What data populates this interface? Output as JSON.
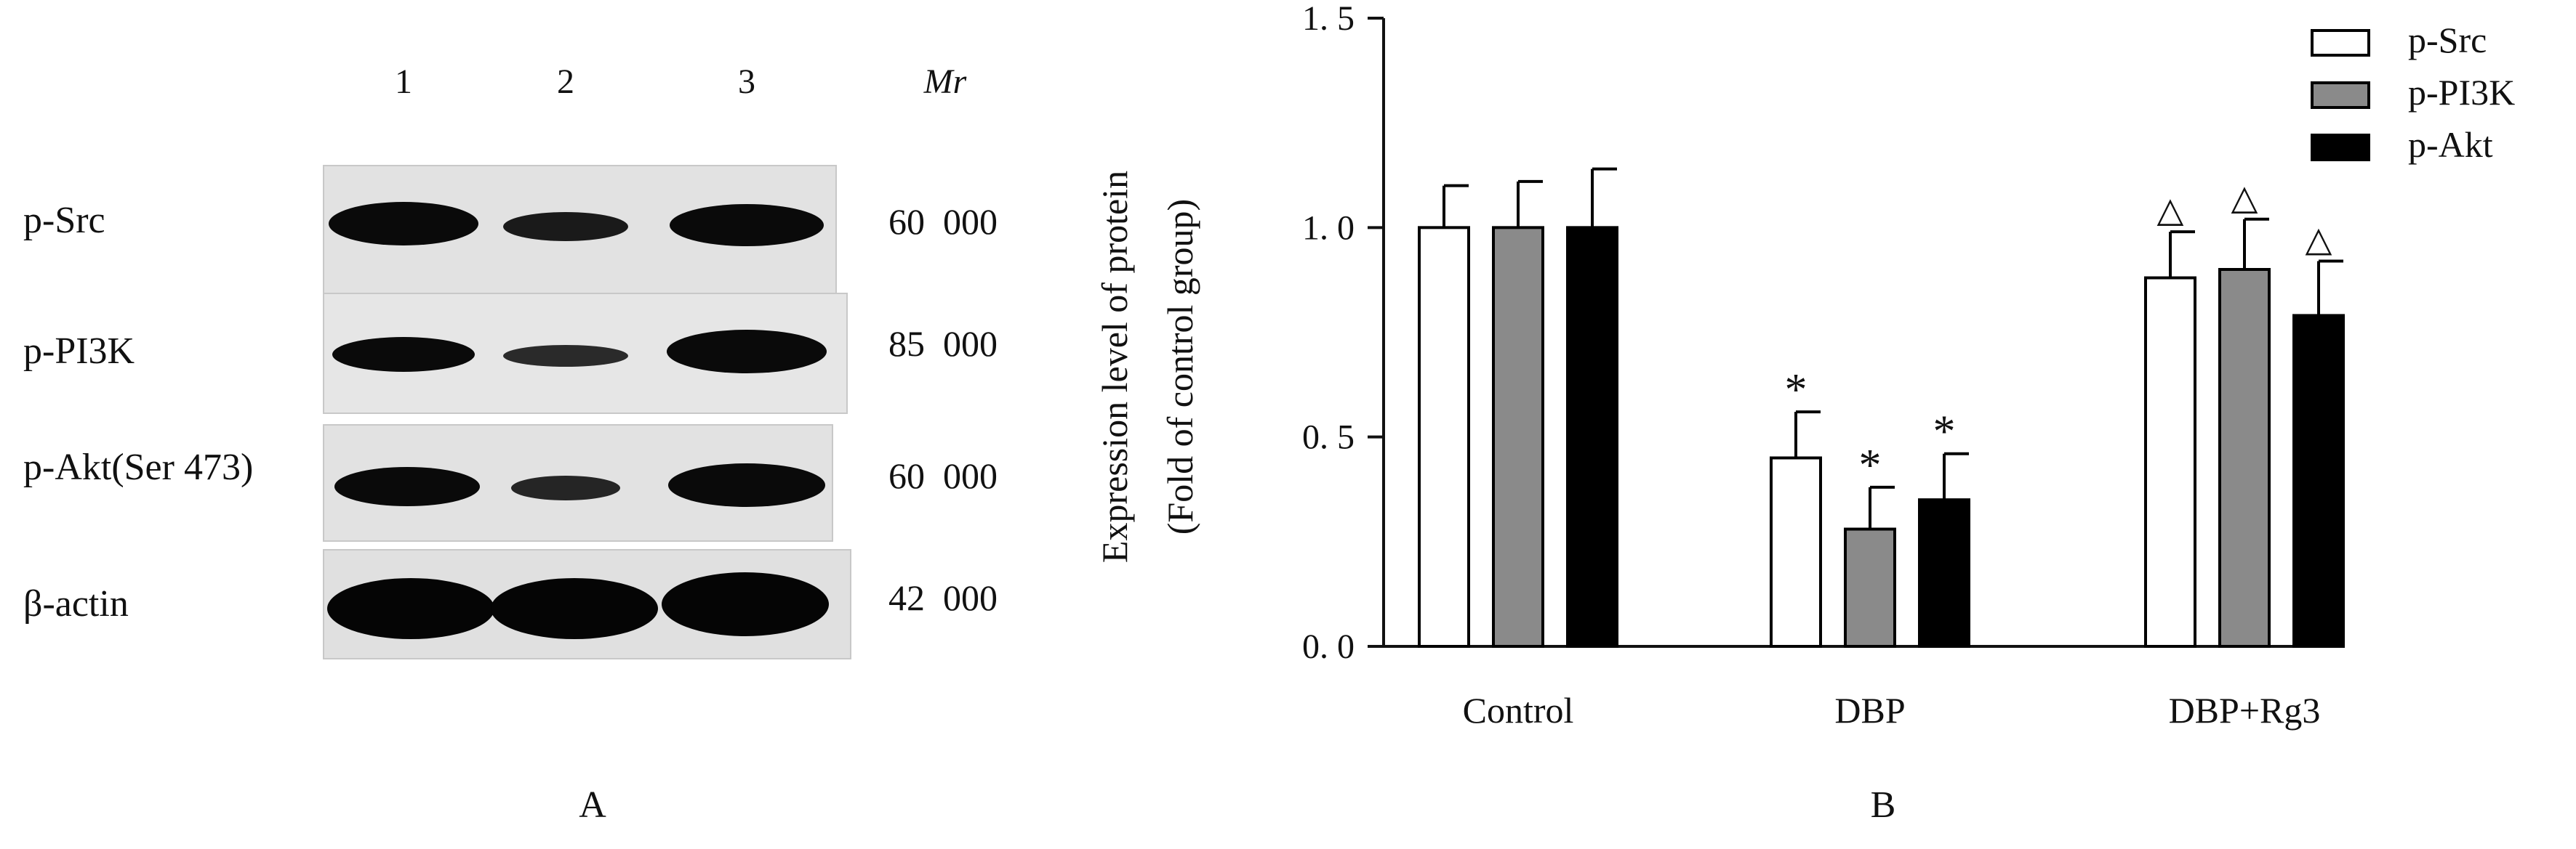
{
  "panel_a": {
    "caption": "A",
    "lane_labels": [
      "1",
      "2",
      "3"
    ],
    "mr_header": "Mr",
    "rows": [
      {
        "name": "p-Src",
        "mr": "60  000"
      },
      {
        "name": "p-PI3K",
        "mr": "85  000"
      },
      {
        "name": "p-Akt(Ser 473)",
        "mr": "60  000"
      },
      {
        "name": "β-actin",
        "mr": "42  000"
      }
    ]
  },
  "panel_b": {
    "caption": "B",
    "annotation_star": "*",
    "annotation_triangle": "△"
  },
  "chart_data": {
    "type": "bar",
    "categories": [
      "Control",
      "DBP",
      "DBP+Rg3"
    ],
    "series": [
      {
        "name": "p-Src",
        "values": [
          1.0,
          0.45,
          0.88
        ],
        "errors": [
          0.1,
          0.11,
          0.11
        ],
        "color": "#ffffff",
        "markers": [
          "",
          "*",
          "△"
        ]
      },
      {
        "name": "p-PI3K",
        "values": [
          1.0,
          0.28,
          0.9
        ],
        "errors": [
          0.11,
          0.1,
          0.12
        ],
        "color": "#8a8a8a",
        "markers": [
          "",
          "*",
          "△"
        ]
      },
      {
        "name": "p-Akt",
        "values": [
          1.0,
          0.35,
          0.79
        ],
        "errors": [
          0.14,
          0.11,
          0.13
        ],
        "color": "#000000",
        "markers": [
          "",
          "*",
          "△"
        ]
      }
    ],
    "ylabel": "Expression level of protein",
    "ylabel2": "(Fold of control group)",
    "ylim": [
      0,
      1.5
    ],
    "yticks": [
      "0. 0",
      "0. 5",
      "1. 0",
      "1. 5"
    ],
    "legend": "top-right",
    "grid": false
  }
}
